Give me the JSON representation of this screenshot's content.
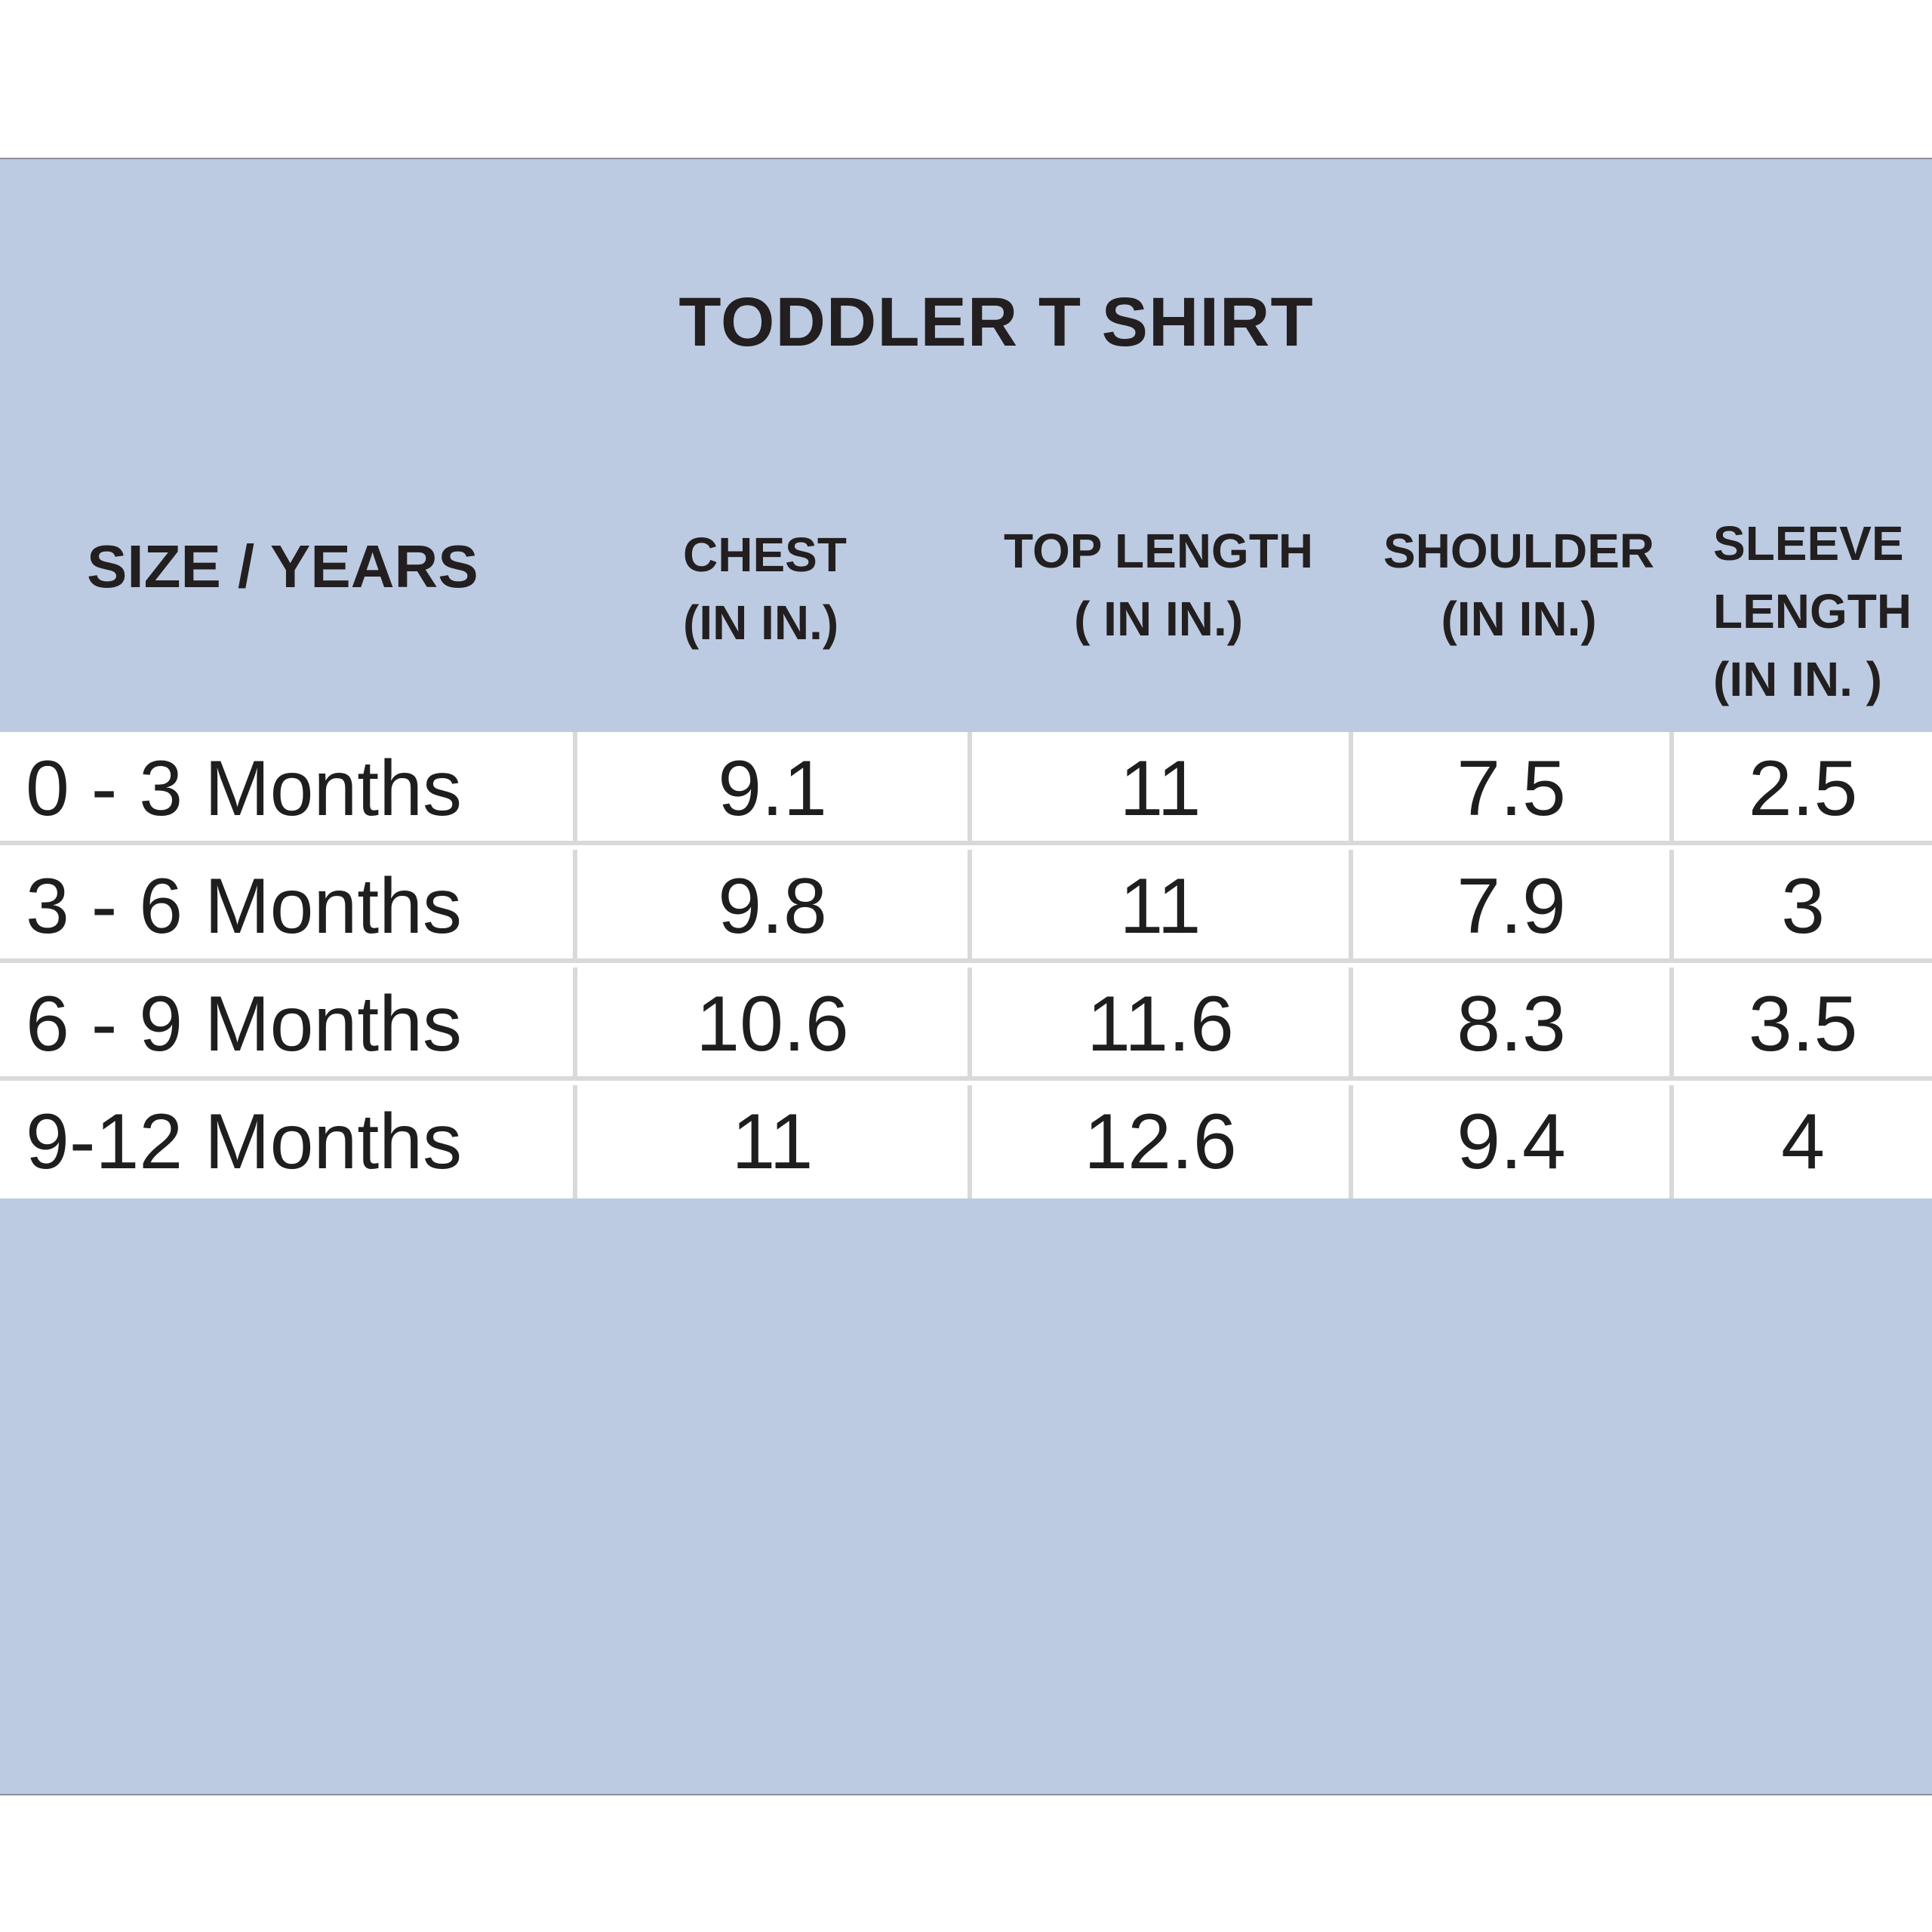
{
  "title": "TODDLER T SHIRT",
  "headers": {
    "size": "SIZE / YEARS",
    "chest": "CHEST\n(IN IN.)",
    "top_length": "TOP LENGTH\n( IN IN.)",
    "shoulder": "SHOULDER\n(IN IN.)",
    "sleeve_length": "SLEEVE\nLENGTH\n(IN IN. )"
  },
  "rows": [
    {
      "size": "0 - 3 Months",
      "chest": "9.1",
      "top_length": "11",
      "shoulder": "7.5",
      "sleeve_length": "2.5"
    },
    {
      "size": "3 - 6 Months",
      "chest": "9.8",
      "top_length": "11",
      "shoulder": "7.9",
      "sleeve_length": "3"
    },
    {
      "size": "6 - 9 Months",
      "chest": "10.6",
      "top_length": "11.6",
      "shoulder": "8.3",
      "sleeve_length": "3.5"
    },
    {
      "size": "9-12 Months",
      "chest": "11",
      "top_length": "12.6",
      "shoulder": "9.4",
      "sleeve_length": "4"
    }
  ],
  "colors": {
    "panel_background": "#bccbe2",
    "text": "#231f20",
    "grid_line": "#d9d9d9"
  }
}
